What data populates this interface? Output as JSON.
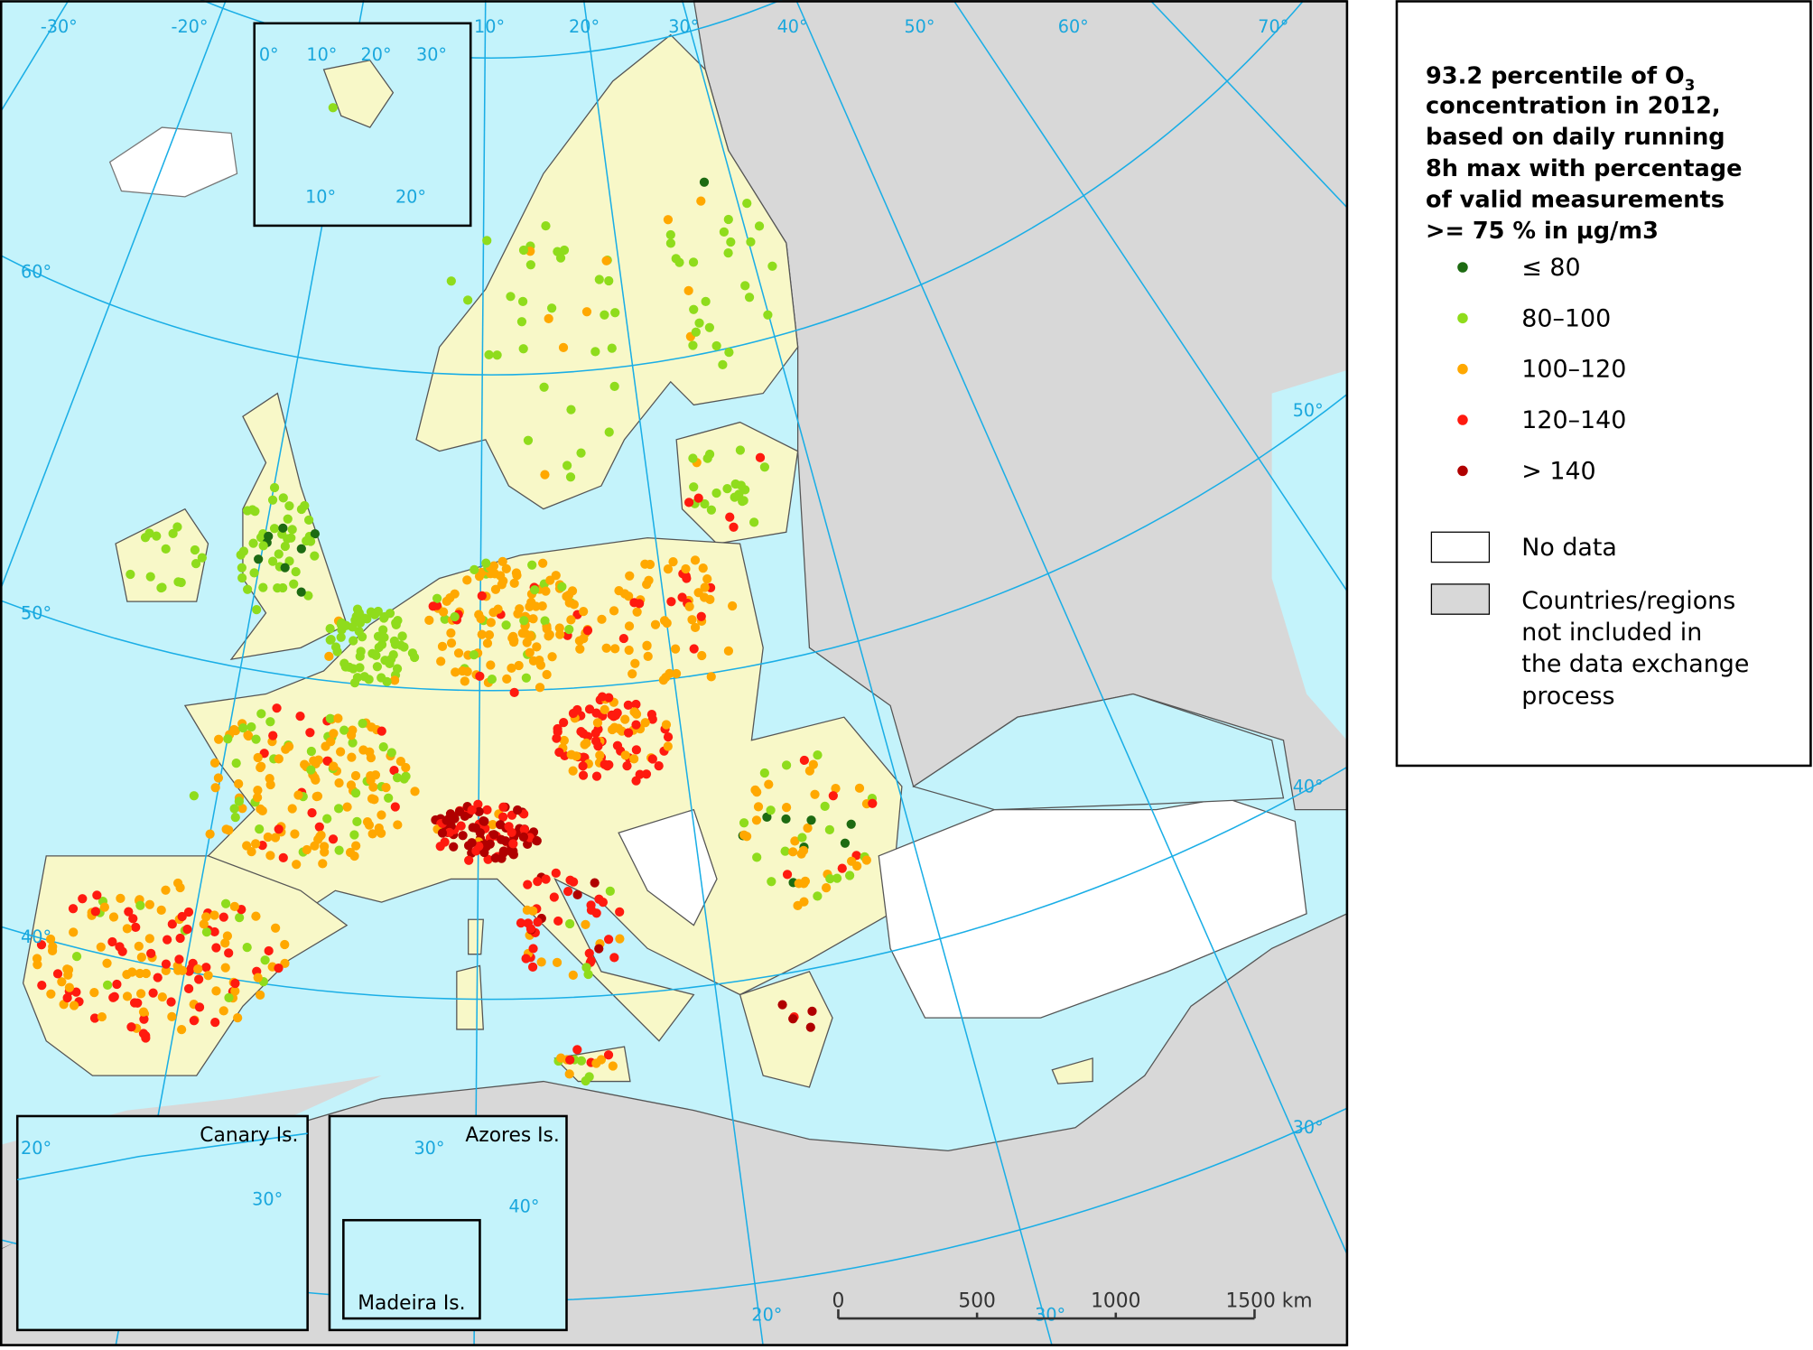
{
  "map": {
    "meridian_labels": [
      "-30°",
      "-20°",
      "10°",
      "20°",
      "30°",
      "40°",
      "50°",
      "60°",
      "70°",
      "20°",
      "30°"
    ],
    "parallel_labels": [
      "60°",
      "50°",
      "40°",
      "50°",
      "40°",
      "30°"
    ],
    "svalbard_inset_labels": [
      "0°",
      "10°",
      "20°",
      "30°",
      "10°",
      "20°"
    ],
    "canary_inset": {
      "title": "Canary Is.",
      "labels": [
        "20°",
        "30°"
      ]
    },
    "azores_inset": {
      "title": "Azores Is.",
      "labels": [
        "30°",
        "40°"
      ]
    },
    "madeira_inset": {
      "title": "Madeira Is."
    },
    "scale_bar": [
      "0",
      "500",
      "1000",
      "1500 km"
    ]
  },
  "legend": {
    "title": {
      "line_1": "93.2 percentile of O",
      "subscript": "3",
      "lines": [
        "concentration in 2012,",
        "based on daily running",
        "8h max with percentage",
        "of valid measurements",
        ">= 75 % in µg/m3"
      ]
    },
    "items": [
      {
        "label": "≤ 80",
        "color": "#1d6b12"
      },
      {
        "label": "80–100",
        "color": "#8fdc1c"
      },
      {
        "label": "100–120",
        "color": "#ffa800"
      },
      {
        "label": "120–140",
        "color": "#ff1a0f"
      },
      {
        "label": "> 140",
        "color": "#b00000"
      }
    ],
    "no_data": "No data",
    "not_included": [
      "Countries/regions",
      "not included in",
      "the data exchange",
      "process"
    ]
  }
}
